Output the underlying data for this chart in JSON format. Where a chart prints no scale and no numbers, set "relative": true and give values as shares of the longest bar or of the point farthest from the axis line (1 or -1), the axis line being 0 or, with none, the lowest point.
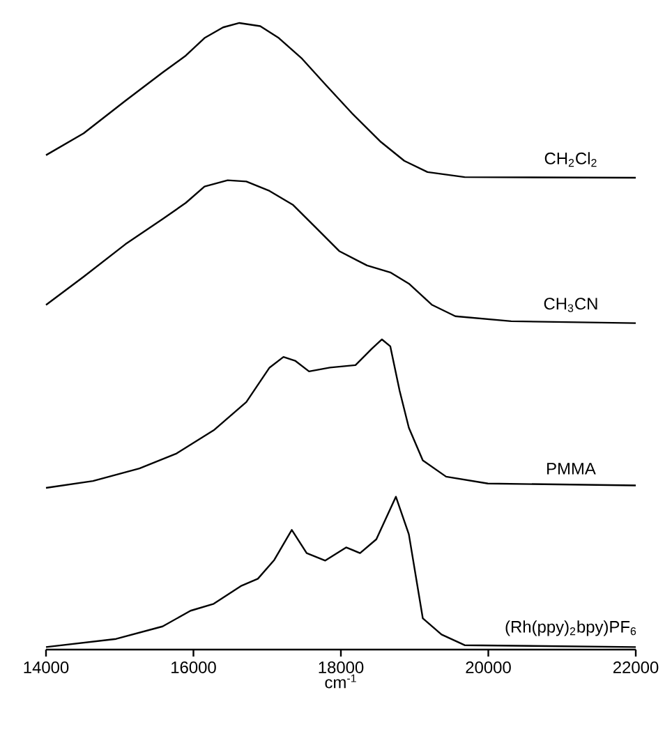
{
  "chart_data": {
    "type": "line",
    "xlabel": "cm$^{-1}$",
    "relative": true,
    "line_style": "solid",
    "xlim": [
      14000,
      22000
    ],
    "xticks": [
      14000,
      16000,
      18000,
      20000,
      22000
    ],
    "series": [
      {
        "name": "CH$_{2}$Cl$_{2}$",
        "color": "#000000",
        "x": [
          14000,
          14511,
          15078,
          15582,
          15897,
          16150,
          16402,
          16623,
          16906,
          17158,
          17473,
          17788,
          18166,
          18544,
          18860,
          19175,
          19679,
          22000
        ],
        "values": [
          0.789,
          0.824,
          0.876,
          0.921,
          0.948,
          0.976,
          0.993,
          1.0,
          0.995,
          0.976,
          0.943,
          0.902,
          0.854,
          0.81,
          0.78,
          0.762,
          0.754,
          0.753
        ]
      },
      {
        "name": "CH$_{3}$CN",
        "color": "#000000",
        "x": [
          14000,
          14511,
          15078,
          15582,
          15897,
          16150,
          16464,
          16717,
          17032,
          17347,
          17663,
          17977,
          18355,
          18670,
          18922,
          19238,
          19553,
          20310,
          22000
        ],
        "values": [
          0.55,
          0.595,
          0.647,
          0.687,
          0.713,
          0.739,
          0.749,
          0.747,
          0.732,
          0.71,
          0.673,
          0.636,
          0.613,
          0.602,
          0.584,
          0.55,
          0.532,
          0.524,
          0.521
        ]
      },
      {
        "name": "PMMA",
        "color": "#000000",
        "x": [
          14000,
          14637,
          15267,
          15772,
          16275,
          16717,
          17032,
          17221,
          17379,
          17568,
          17852,
          18198,
          18419,
          18557,
          18670,
          18797,
          18922,
          19111,
          19427,
          19994,
          22000
        ],
        "values": [
          0.258,
          0.269,
          0.289,
          0.313,
          0.35,
          0.395,
          0.45,
          0.467,
          0.461,
          0.444,
          0.45,
          0.454,
          0.48,
          0.495,
          0.484,
          0.413,
          0.354,
          0.302,
          0.276,
          0.265,
          0.262
        ]
      },
      {
        "name": "(Rh(ppy)$_{2}$bpy)PF$_{6}$",
        "color": "#000000",
        "x": [
          14000,
          14951,
          15582,
          15961,
          16275,
          16653,
          16874,
          17096,
          17334,
          17536,
          17788,
          18071,
          18260,
          18481,
          18746,
          18922,
          19111,
          19365,
          19679,
          22000
        ],
        "values": [
          0.004,
          0.017,
          0.037,
          0.062,
          0.073,
          0.102,
          0.113,
          0.143,
          0.191,
          0.154,
          0.142,
          0.163,
          0.154,
          0.176,
          0.244,
          0.184,
          0.05,
          0.024,
          0.007,
          0.004
        ]
      }
    ]
  }
}
